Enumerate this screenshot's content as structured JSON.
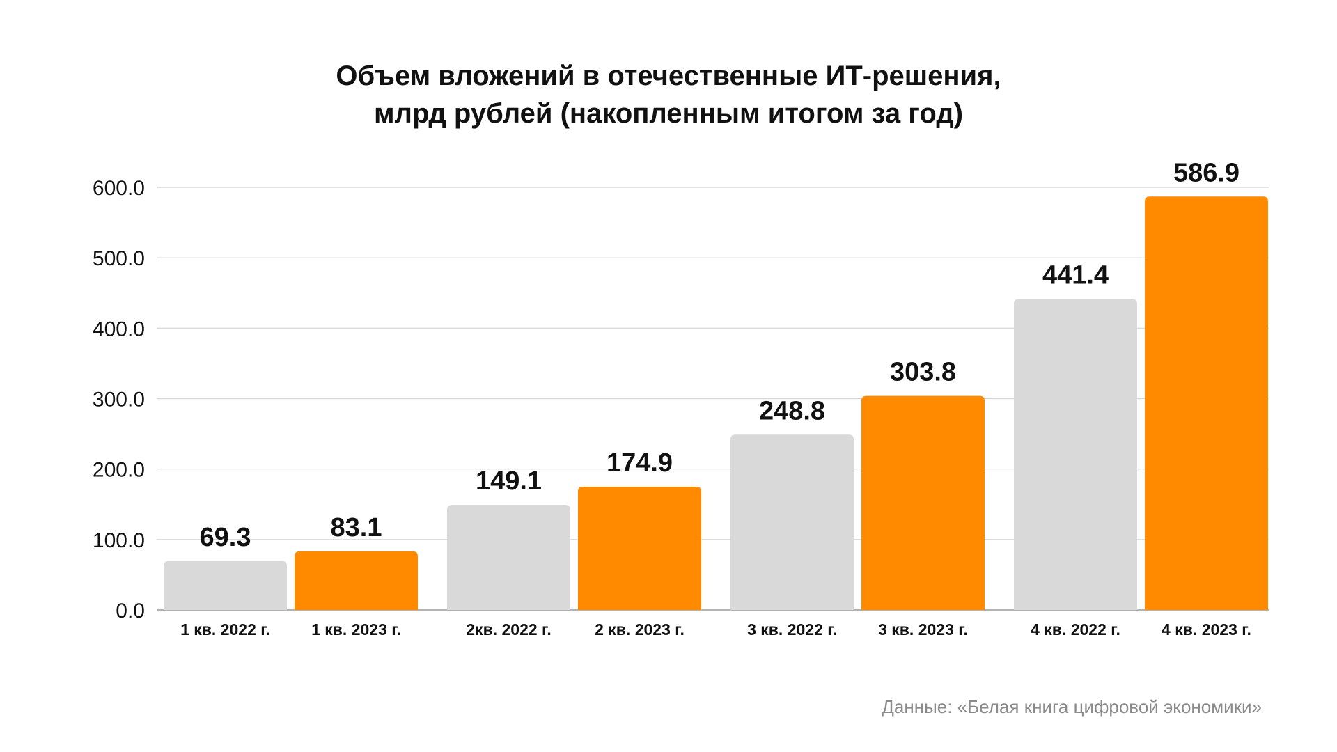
{
  "chart_data": {
    "type": "bar",
    "title_lines": [
      "Объем вложений в отечественные ИТ-решения,",
      "млрд рублей (накопленным итогом за год)"
    ],
    "categories": [
      "1 кв. 2022 г.",
      "1 кв. 2023 г.",
      "2кв. 2022 г.",
      "2 кв. 2023 г.",
      "3 кв. 2022 г.",
      "3 кв. 2023 г.",
      "4 кв. 2022 г.",
      "4 кв. 2023 г."
    ],
    "values": [
      69.3,
      83.1,
      149.1,
      174.9,
      248.8,
      303.8,
      441.4,
      586.9
    ],
    "value_labels": [
      "69.3",
      "83.1",
      "149.1",
      "174.9",
      "248.8",
      "303.8",
      "441.4",
      "586.9"
    ],
    "ylim": [
      0,
      600
    ],
    "yticks": [
      "0.0",
      "100.0",
      "200.0",
      "300.0",
      "400.0",
      "500.0",
      "600.0"
    ],
    "grid": true,
    "bar_colors": [
      "#d9d9d9",
      "#ff8a00",
      "#d9d9d9",
      "#ff8a00",
      "#d9d9d9",
      "#ff8a00",
      "#d9d9d9",
      "#ff8a00"
    ]
  },
  "footer": {
    "source": "Данные: «Белая книга цифровой экономики»"
  }
}
